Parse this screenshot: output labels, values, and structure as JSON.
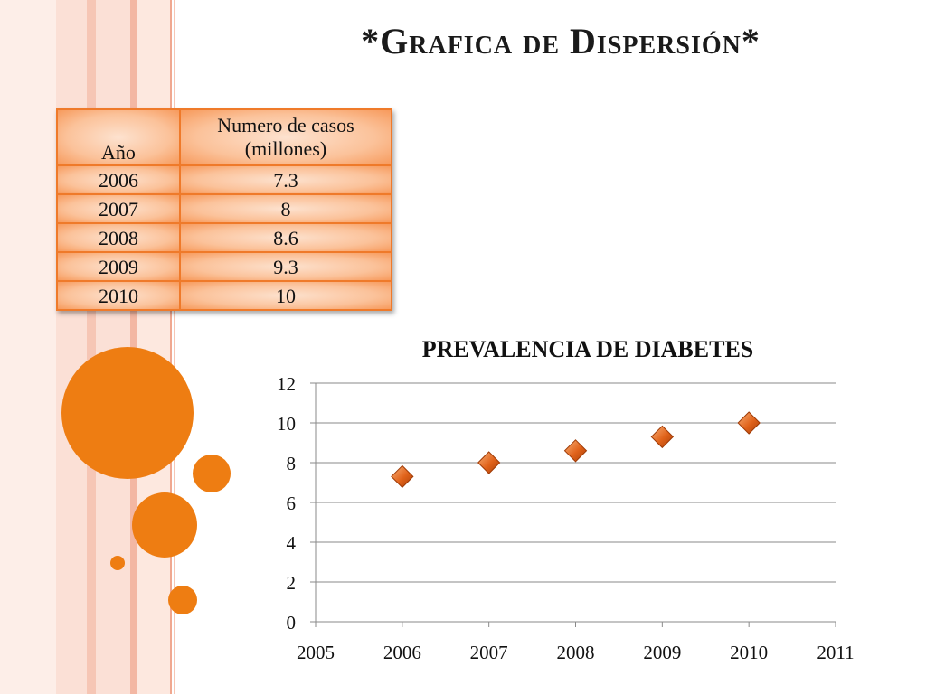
{
  "slide": {
    "title": "*Grafica de Dispersión*"
  },
  "table": {
    "headers": [
      "Año",
      "Numero de casos (millones)"
    ],
    "rows": [
      [
        "2006",
        "7.3"
      ],
      [
        "2007",
        "8"
      ],
      [
        "2008",
        "8.6"
      ],
      [
        "2009",
        "9.3"
      ],
      [
        "2010",
        "10"
      ]
    ]
  },
  "colors": {
    "accent": "#ee7d12",
    "stripe_light": "#fbe0d6",
    "stripe_pink": "#f6c6b5",
    "table_border": "#ef7a2a",
    "marker": "#e0621a",
    "gridline": "#888888"
  },
  "chart_data": {
    "type": "scatter",
    "title": "PREVALENCIA DE DIABETES",
    "xlabel": "",
    "ylabel": "",
    "xlim": [
      2005,
      2011
    ],
    "ylim": [
      0,
      12
    ],
    "x_ticks": [
      2005,
      2006,
      2007,
      2008,
      2009,
      2010,
      2011
    ],
    "y_ticks": [
      0,
      2,
      4,
      6,
      8,
      10,
      12
    ],
    "grid": true,
    "legend": "none",
    "series": [
      {
        "x": [
          2006,
          2007,
          2008,
          2009,
          2010
        ],
        "y": [
          7.3,
          8,
          8.6,
          9.3,
          10
        ],
        "marker": "diamond"
      }
    ]
  }
}
